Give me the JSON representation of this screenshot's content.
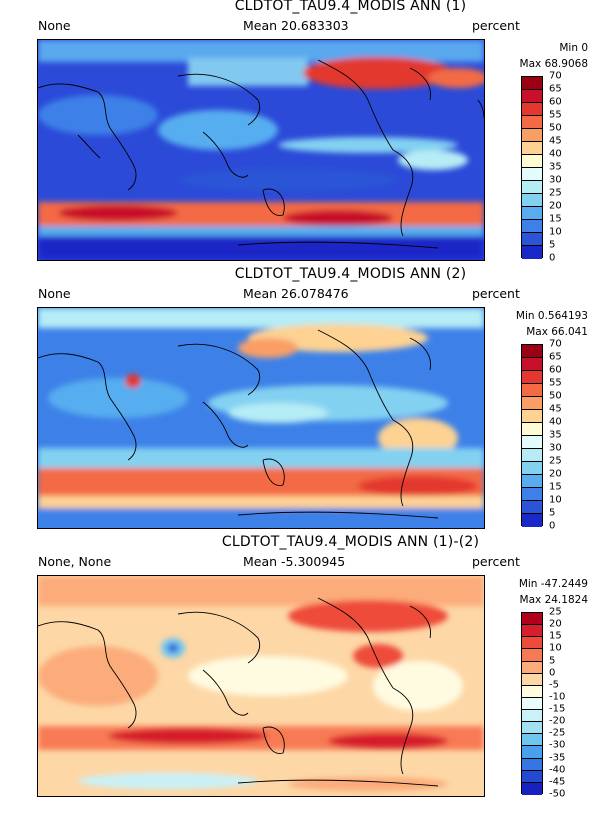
{
  "panels": [
    {
      "title": "CLDTOT_TAU9.4_MODIS ANN (1)",
      "left_label": "None",
      "mean_label": "Mean 20.683303",
      "units": "percent",
      "min_label": "Min 0",
      "max_label": "Max 68.9068",
      "levels": [
        "70",
        "65",
        "60",
        "55",
        "50",
        "45",
        "40",
        "35",
        "30",
        "25",
        "20",
        "15",
        "10",
        "5",
        "0"
      ],
      "colors": [
        "#9b0015",
        "#c8102a",
        "#e3372f",
        "#f36a44",
        "#f99f66",
        "#fdd293",
        "#fffbd3",
        "#e4fbfb",
        "#b5ecf5",
        "#83d1f1",
        "#57adef",
        "#3d81e8",
        "#2b55d6",
        "#1a28c7"
      ]
    },
    {
      "title": "CLDTOT_TAU9.4_MODIS ANN (2)",
      "left_label": "None",
      "mean_label": "Mean 26.078476",
      "units": "percent",
      "min_label": "Min 0.564193",
      "max_label": "Max 66.041",
      "levels": [
        "70",
        "65",
        "60",
        "55",
        "50",
        "45",
        "40",
        "35",
        "30",
        "25",
        "20",
        "15",
        "10",
        "5",
        "0"
      ],
      "colors": [
        "#9b0015",
        "#c8102a",
        "#e3372f",
        "#f36a44",
        "#f99f66",
        "#fdd293",
        "#fffbd3",
        "#e4fbfb",
        "#b5ecf5",
        "#83d1f1",
        "#57adef",
        "#3d81e8",
        "#2b55d6",
        "#1a28c7"
      ]
    },
    {
      "title": "CLDTOT_TAU9.4_MODIS ANN (1)-(2)",
      "left_label": "None, None",
      "mean_label": "Mean -5.300945",
      "units": "percent",
      "min_label": "Min -47.2449",
      "max_label": "Max 24.1824",
      "levels": [
        "25",
        "20",
        "15",
        "10",
        "5",
        "0",
        "-5",
        "-10",
        "-15",
        "-20",
        "-25",
        "-30",
        "-35",
        "-40",
        "-45",
        "-50"
      ],
      "colors": [
        "#b1001c",
        "#d61e2c",
        "#ee4b3a",
        "#f87a55",
        "#fcac7a",
        "#fdd7a6",
        "#fffbe1",
        "#eafbfb",
        "#c9f1f8",
        "#a0e1f4",
        "#6fc6f0",
        "#49a0ec",
        "#3577e2",
        "#2449d2",
        "#1820c0"
      ]
    }
  ]
}
